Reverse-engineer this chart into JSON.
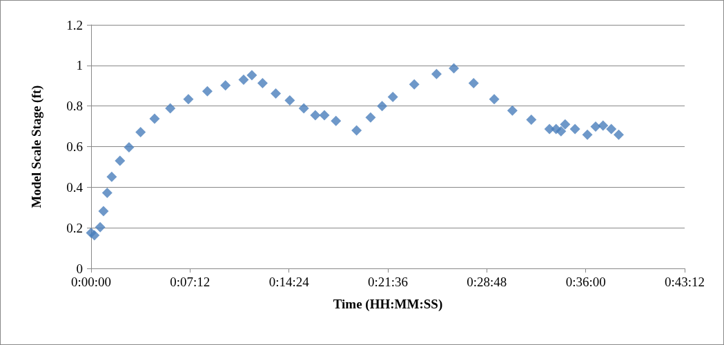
{
  "chart_data": {
    "type": "scatter",
    "xlabel": "Time (HH:MM:SS)",
    "ylabel": "Model Scale Stage (ft)",
    "x": [
      0,
      0.004,
      0.011,
      0.015,
      0.0195,
      0.025,
      0.035,
      0.046,
      0.06,
      0.077,
      0.096,
      0.118,
      0.141,
      0.163,
      0.185,
      0.195,
      0.208,
      0.224,
      0.241,
      0.258,
      0.272,
      0.283,
      0.297,
      0.322,
      0.339,
      0.353,
      0.366,
      0.392,
      0.419,
      0.44,
      0.464,
      0.489,
      0.511,
      0.534,
      0.556,
      0.564,
      0.57,
      0.575,
      0.587,
      0.602,
      0.612,
      0.621,
      0.631,
      0.64
    ],
    "series": [
      {
        "color": "#4a7ebb",
        "values": [
          0.175,
          0.163,
          0.203,
          0.282,
          0.372,
          0.451,
          0.53,
          0.597,
          0.671,
          0.738,
          0.789,
          0.834,
          0.873,
          0.902,
          0.93,
          0.952,
          0.913,
          0.862,
          0.828,
          0.789,
          0.755,
          0.755,
          0.727,
          0.68,
          0.744,
          0.8,
          0.845,
          0.907,
          0.958,
          0.986,
          0.913,
          0.834,
          0.778,
          0.733,
          0.687,
          0.687,
          0.676,
          0.71,
          0.687,
          0.659,
          0.699,
          0.704,
          0.687,
          0.659
        ]
      }
    ],
    "xlim": [
      0,
      0.72
    ],
    "xticks": [
      {
        "value": 0,
        "label": "0:00:00"
      },
      {
        "value": 0.12,
        "label": "0:07:12"
      },
      {
        "value": 0.24,
        "label": "0:14:24"
      },
      {
        "value": 0.36,
        "label": "0:21:36"
      },
      {
        "value": 0.48,
        "label": "0:28:48"
      },
      {
        "value": 0.6,
        "label": "0:36:00"
      },
      {
        "value": 0.72,
        "label": "0:43:12"
      }
    ],
    "ylim": [
      0,
      1.2
    ],
    "yticks": [
      0,
      0.2,
      0.4,
      0.6,
      0.8,
      1,
      1.2
    ],
    "grid": "y",
    "marker": "diamond"
  }
}
